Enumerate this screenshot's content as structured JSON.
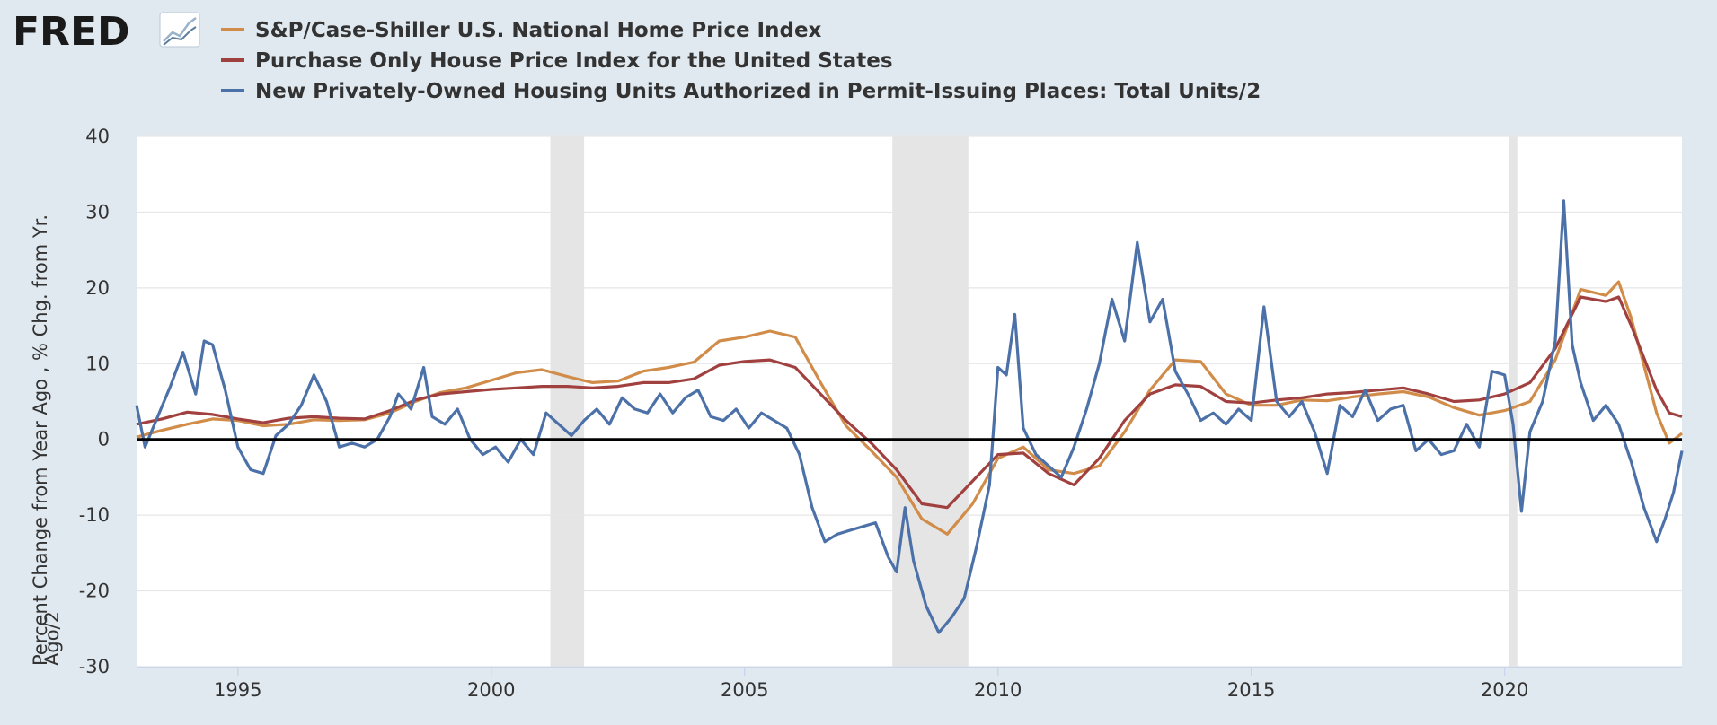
{
  "logo": {
    "text": "FRED",
    "icon": "chart-line-icon"
  },
  "chart_data": {
    "type": "line",
    "title": "",
    "ylabel_lines": [
      "Percent Change from Year Ago , % Chg. from Yr.",
      "Ago/2"
    ],
    "xlabel": "",
    "x_domain": [
      "1993-01",
      "2023-07"
    ],
    "ylim": [
      -30,
      40
    ],
    "y_ticks": [
      -30,
      -20,
      -10,
      0,
      10,
      20,
      30,
      40
    ],
    "x_ticks": [
      "1995",
      "2000",
      "2005",
      "2010",
      "2015",
      "2020"
    ],
    "grid": "horizontal",
    "legend_position": "top-left",
    "zero_line": true,
    "recessions": [
      {
        "start": "2001-03",
        "end": "2001-11"
      },
      {
        "start": "2007-12",
        "end": "2009-06"
      },
      {
        "start": "2020-02",
        "end": "2020-04"
      }
    ],
    "series": [
      {
        "name": "S&P/Case-Shiller U.S. National Home Price Index",
        "color": "#d08c48",
        "points": [
          [
            "1993-01",
            0.3
          ],
          [
            "1993-07",
            1.2
          ],
          [
            "1994-01",
            2.0
          ],
          [
            "1994-07",
            2.7
          ],
          [
            "1995-01",
            2.5
          ],
          [
            "1995-07",
            1.8
          ],
          [
            "1996-01",
            2.0
          ],
          [
            "1996-07",
            2.6
          ],
          [
            "1997-01",
            2.5
          ],
          [
            "1997-07",
            2.6
          ],
          [
            "1998-01",
            3.5
          ],
          [
            "1998-07",
            5.0
          ],
          [
            "1999-01",
            6.2
          ],
          [
            "1999-07",
            6.8
          ],
          [
            "2000-01",
            7.8
          ],
          [
            "2000-07",
            8.8
          ],
          [
            "2001-01",
            9.2
          ],
          [
            "2001-07",
            8.3
          ],
          [
            "2002-01",
            7.5
          ],
          [
            "2002-07",
            7.7
          ],
          [
            "2003-01",
            9.0
          ],
          [
            "2003-07",
            9.5
          ],
          [
            "2004-01",
            10.2
          ],
          [
            "2004-07",
            13.0
          ],
          [
            "2005-01",
            13.5
          ],
          [
            "2005-07",
            14.3
          ],
          [
            "2006-01",
            13.5
          ],
          [
            "2006-07",
            7.5
          ],
          [
            "2007-01",
            1.8
          ],
          [
            "2007-07",
            -1.5
          ],
          [
            "2008-01",
            -5.0
          ],
          [
            "2008-07",
            -10.5
          ],
          [
            "2009-01",
            -12.5
          ],
          [
            "2009-07",
            -8.5
          ],
          [
            "2010-01",
            -2.5
          ],
          [
            "2010-07",
            -1.0
          ],
          [
            "2011-01",
            -4.0
          ],
          [
            "2011-07",
            -4.5
          ],
          [
            "2012-01",
            -3.5
          ],
          [
            "2012-07",
            1.0
          ],
          [
            "2013-01",
            6.5
          ],
          [
            "2013-07",
            10.5
          ],
          [
            "2014-01",
            10.3
          ],
          [
            "2014-07",
            6.0
          ],
          [
            "2015-01",
            4.5
          ],
          [
            "2015-07",
            4.5
          ],
          [
            "2016-01",
            5.2
          ],
          [
            "2016-07",
            5.1
          ],
          [
            "2017-01",
            5.6
          ],
          [
            "2017-07",
            6.0
          ],
          [
            "2018-01",
            6.3
          ],
          [
            "2018-07",
            5.6
          ],
          [
            "2019-01",
            4.2
          ],
          [
            "2019-07",
            3.2
          ],
          [
            "2020-01",
            3.8
          ],
          [
            "2020-07",
            5.0
          ],
          [
            "2021-01",
            10.5
          ],
          [
            "2021-07",
            19.8
          ],
          [
            "2022-01",
            19.0
          ],
          [
            "2022-04",
            20.8
          ],
          [
            "2022-07",
            16.0
          ],
          [
            "2023-01",
            3.5
          ],
          [
            "2023-04",
            -0.5
          ],
          [
            "2023-07",
            0.8
          ]
        ]
      },
      {
        "name": "Purchase Only House Price Index for the United States",
        "color": "#a1413f",
        "points": [
          [
            "1993-01",
            2.0
          ],
          [
            "1993-07",
            2.7
          ],
          [
            "1994-01",
            3.6
          ],
          [
            "1994-07",
            3.3
          ],
          [
            "1995-01",
            2.7
          ],
          [
            "1995-07",
            2.2
          ],
          [
            "1996-01",
            2.8
          ],
          [
            "1996-07",
            3.0
          ],
          [
            "1997-01",
            2.8
          ],
          [
            "1997-07",
            2.7
          ],
          [
            "1998-01",
            3.8
          ],
          [
            "1998-07",
            5.2
          ],
          [
            "1999-01",
            6.0
          ],
          [
            "1999-07",
            6.3
          ],
          [
            "2000-01",
            6.6
          ],
          [
            "2000-07",
            6.8
          ],
          [
            "2001-01",
            7.0
          ],
          [
            "2001-07",
            7.0
          ],
          [
            "2002-01",
            6.8
          ],
          [
            "2002-07",
            7.0
          ],
          [
            "2003-01",
            7.5
          ],
          [
            "2003-07",
            7.5
          ],
          [
            "2004-01",
            8.0
          ],
          [
            "2004-07",
            9.8
          ],
          [
            "2005-01",
            10.3
          ],
          [
            "2005-07",
            10.5
          ],
          [
            "2006-01",
            9.5
          ],
          [
            "2006-07",
            6.0
          ],
          [
            "2007-01",
            2.5
          ],
          [
            "2007-07",
            -0.5
          ],
          [
            "2008-01",
            -4.0
          ],
          [
            "2008-07",
            -8.5
          ],
          [
            "2009-01",
            -9.0
          ],
          [
            "2009-07",
            -5.5
          ],
          [
            "2010-01",
            -2.0
          ],
          [
            "2010-07",
            -1.8
          ],
          [
            "2011-01",
            -4.5
          ],
          [
            "2011-07",
            -6.0
          ],
          [
            "2012-01",
            -2.5
          ],
          [
            "2012-07",
            2.5
          ],
          [
            "2013-01",
            6.0
          ],
          [
            "2013-07",
            7.2
          ],
          [
            "2014-01",
            7.0
          ],
          [
            "2014-07",
            5.0
          ],
          [
            "2015-01",
            4.8
          ],
          [
            "2015-07",
            5.2
          ],
          [
            "2016-01",
            5.5
          ],
          [
            "2016-07",
            6.0
          ],
          [
            "2017-01",
            6.2
          ],
          [
            "2017-07",
            6.5
          ],
          [
            "2018-01",
            6.8
          ],
          [
            "2018-07",
            6.0
          ],
          [
            "2019-01",
            5.0
          ],
          [
            "2019-07",
            5.2
          ],
          [
            "2020-01",
            6.0
          ],
          [
            "2020-07",
            7.5
          ],
          [
            "2021-01",
            12.0
          ],
          [
            "2021-07",
            18.8
          ],
          [
            "2022-01",
            18.2
          ],
          [
            "2022-04",
            18.8
          ],
          [
            "2022-07",
            15.0
          ],
          [
            "2023-01",
            6.5
          ],
          [
            "2023-04",
            3.5
          ],
          [
            "2023-07",
            3.0
          ]
        ]
      },
      {
        "name": "New Privately-Owned Housing Units Authorized in Permit-Issuing Places: Total Units/2",
        "color": "#4c71a8",
        "points": [
          [
            "1993-01",
            4.5
          ],
          [
            "1993-03",
            -1.0
          ],
          [
            "1993-06",
            3.0
          ],
          [
            "1993-09",
            7.0
          ],
          [
            "1993-12",
            11.5
          ],
          [
            "1994-03",
            6.0
          ],
          [
            "1994-05",
            13.0
          ],
          [
            "1994-07",
            12.5
          ],
          [
            "1994-10",
            6.5
          ],
          [
            "1995-01",
            -1.0
          ],
          [
            "1995-04",
            -4.0
          ],
          [
            "1995-07",
            -4.5
          ],
          [
            "1995-10",
            0.5
          ],
          [
            "1996-01",
            2.0
          ],
          [
            "1996-04",
            4.5
          ],
          [
            "1996-07",
            8.5
          ],
          [
            "1996-10",
            5.0
          ],
          [
            "1997-01",
            -1.0
          ],
          [
            "1997-04",
            -0.5
          ],
          [
            "1997-07",
            -1.0
          ],
          [
            "1997-10",
            0.0
          ],
          [
            "1998-01",
            3.0
          ],
          [
            "1998-03",
            6.0
          ],
          [
            "1998-06",
            4.0
          ],
          [
            "1998-09",
            9.5
          ],
          [
            "1998-11",
            3.0
          ],
          [
            "1999-02",
            2.0
          ],
          [
            "1999-05",
            4.0
          ],
          [
            "1999-08",
            0.0
          ],
          [
            "1999-11",
            -2.0
          ],
          [
            "2000-02",
            -1.0
          ],
          [
            "2000-05",
            -3.0
          ],
          [
            "2000-08",
            0.0
          ],
          [
            "2000-11",
            -2.0
          ],
          [
            "2001-02",
            3.5
          ],
          [
            "2001-05",
            2.0
          ],
          [
            "2001-08",
            0.5
          ],
          [
            "2001-11",
            2.5
          ],
          [
            "2002-02",
            4.0
          ],
          [
            "2002-05",
            2.0
          ],
          [
            "2002-08",
            5.5
          ],
          [
            "2002-11",
            4.0
          ],
          [
            "2003-02",
            3.5
          ],
          [
            "2003-05",
            6.0
          ],
          [
            "2003-08",
            3.5
          ],
          [
            "2003-11",
            5.5
          ],
          [
            "2004-02",
            6.5
          ],
          [
            "2004-05",
            3.0
          ],
          [
            "2004-08",
            2.5
          ],
          [
            "2004-11",
            4.0
          ],
          [
            "2005-02",
            1.5
          ],
          [
            "2005-05",
            3.5
          ],
          [
            "2005-08",
            2.5
          ],
          [
            "2005-11",
            1.5
          ],
          [
            "2006-02",
            -2.0
          ],
          [
            "2006-05",
            -9.0
          ],
          [
            "2006-08",
            -13.5
          ],
          [
            "2006-11",
            -12.5
          ],
          [
            "2007-02",
            -12.0
          ],
          [
            "2007-05",
            -11.5
          ],
          [
            "2007-08",
            -11.0
          ],
          [
            "2007-11",
            -15.5
          ],
          [
            "2008-01",
            -17.5
          ],
          [
            "2008-03",
            -9.0
          ],
          [
            "2008-05",
            -16.0
          ],
          [
            "2008-08",
            -22.0
          ],
          [
            "2008-11",
            -25.5
          ],
          [
            "2009-02",
            -23.5
          ],
          [
            "2009-05",
            -21.0
          ],
          [
            "2009-08",
            -14.0
          ],
          [
            "2009-11",
            -6.0
          ],
          [
            "2010-01",
            9.5
          ],
          [
            "2010-03",
            8.5
          ],
          [
            "2010-05",
            16.5
          ],
          [
            "2010-07",
            1.5
          ],
          [
            "2010-10",
            -2.0
          ],
          [
            "2011-01",
            -3.5
          ],
          [
            "2011-04",
            -5.0
          ],
          [
            "2011-07",
            -1.0
          ],
          [
            "2011-10",
            4.0
          ],
          [
            "2012-01",
            10.0
          ],
          [
            "2012-04",
            18.5
          ],
          [
            "2012-07",
            13.0
          ],
          [
            "2012-10",
            26.0
          ],
          [
            "2013-01",
            15.5
          ],
          [
            "2013-04",
            18.5
          ],
          [
            "2013-07",
            9.0
          ],
          [
            "2013-10",
            6.0
          ],
          [
            "2014-01",
            2.5
          ],
          [
            "2014-04",
            3.5
          ],
          [
            "2014-07",
            2.0
          ],
          [
            "2014-10",
            4.0
          ],
          [
            "2015-01",
            2.5
          ],
          [
            "2015-04",
            17.5
          ],
          [
            "2015-07",
            5.0
          ],
          [
            "2015-10",
            3.0
          ],
          [
            "2016-01",
            5.0
          ],
          [
            "2016-04",
            1.0
          ],
          [
            "2016-07",
            -4.5
          ],
          [
            "2016-10",
            4.5
          ],
          [
            "2017-01",
            3.0
          ],
          [
            "2017-04",
            6.5
          ],
          [
            "2017-07",
            2.5
          ],
          [
            "2017-10",
            4.0
          ],
          [
            "2018-01",
            4.5
          ],
          [
            "2018-04",
            -1.5
          ],
          [
            "2018-07",
            0.0
          ],
          [
            "2018-10",
            -2.0
          ],
          [
            "2019-01",
            -1.5
          ],
          [
            "2019-04",
            2.0
          ],
          [
            "2019-07",
            -1.0
          ],
          [
            "2019-10",
            9.0
          ],
          [
            "2020-01",
            8.5
          ],
          [
            "2020-03",
            2.0
          ],
          [
            "2020-05",
            -9.5
          ],
          [
            "2020-07",
            1.0
          ],
          [
            "2020-10",
            5.0
          ],
          [
            "2021-01",
            13.0
          ],
          [
            "2021-03",
            31.5
          ],
          [
            "2021-05",
            12.5
          ],
          [
            "2021-07",
            7.5
          ],
          [
            "2021-10",
            2.5
          ],
          [
            "2022-01",
            4.5
          ],
          [
            "2022-04",
            2.0
          ],
          [
            "2022-07",
            -3.0
          ],
          [
            "2022-10",
            -9.0
          ],
          [
            "2023-01",
            -13.5
          ],
          [
            "2023-03",
            -10.5
          ],
          [
            "2023-05",
            -7.0
          ],
          [
            "2023-07",
            -1.5
          ]
        ]
      }
    ]
  }
}
